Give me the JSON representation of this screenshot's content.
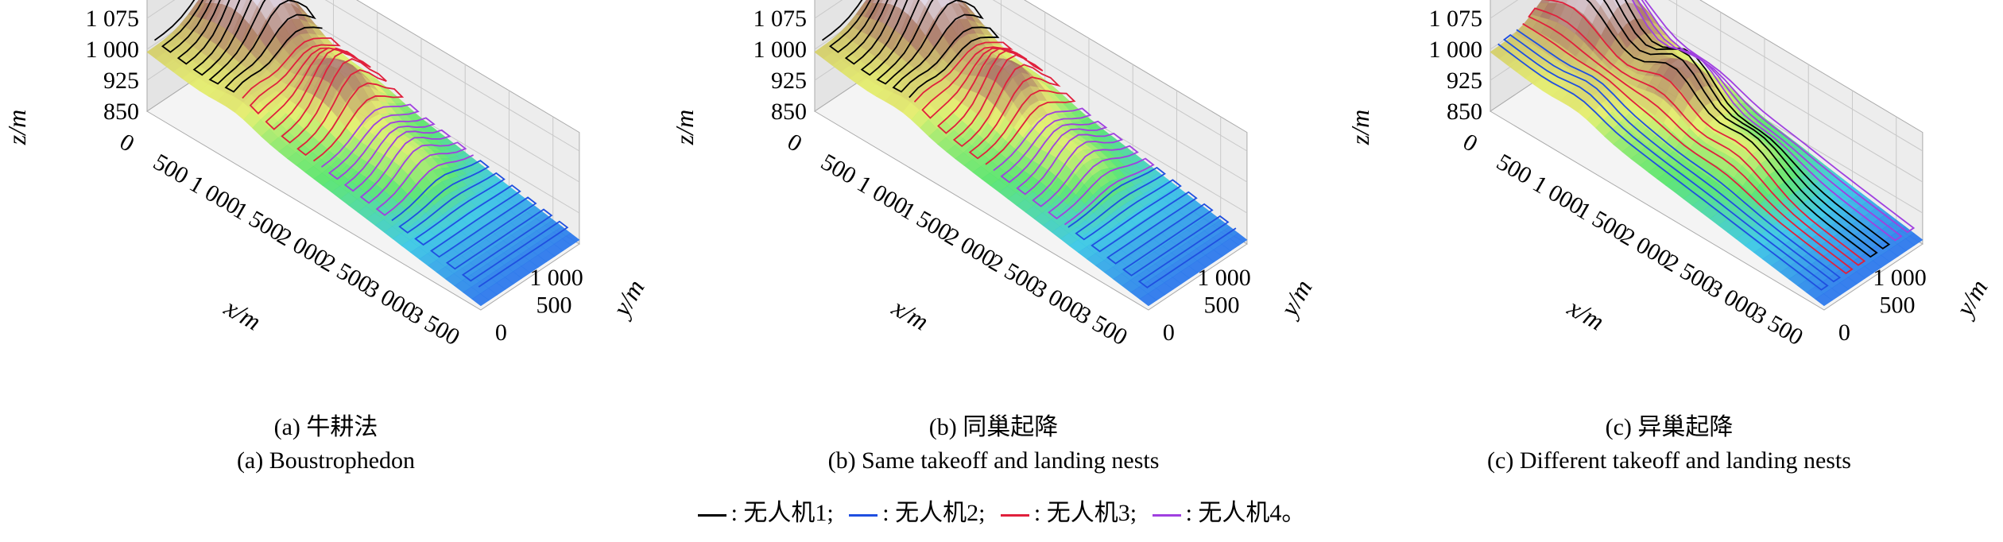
{
  "chart_data": [
    {
      "type": "surface3d",
      "caption_cn": "(a) 牛耕法",
      "caption_en": "(a) Boustrophedon",
      "xlabel": "x/m",
      "ylabel": "y/m",
      "zlabel": "z/m",
      "xticks": [
        "0",
        "500",
        "1 000",
        "1 500",
        "2 000",
        "2 500",
        "3 000",
        "3 500"
      ],
      "yticks": [
        "0",
        "500",
        "1 000"
      ],
      "zticks": [
        "850",
        "925",
        "1 000",
        "1 075"
      ],
      "xlim": [
        0,
        3800
      ],
      "ylim": [
        0,
        1200
      ],
      "zlim": [
        850,
        1120
      ],
      "regions": [
        {
          "uav": 1,
          "x": [
            0,
            1000
          ]
        },
        {
          "uav": 3,
          "x": [
            1000,
            1900
          ]
        },
        {
          "uav": 4,
          "x": [
            1900,
            2700
          ]
        },
        {
          "uav": 2,
          "x": [
            2700,
            3800
          ]
        }
      ]
    },
    {
      "type": "surface3d",
      "caption_cn": "(b) 同巢起降",
      "caption_en": "(b) Same takeoff and landing nests",
      "xlabel": "x/m",
      "ylabel": "y/m",
      "zlabel": "z/m",
      "xticks": [
        "0",
        "500",
        "1 000",
        "1 500",
        "2 000",
        "2 500",
        "3 000",
        "3 500"
      ],
      "yticks": [
        "0",
        "500",
        "1 000"
      ],
      "zticks": [
        "850",
        "925",
        "1 000",
        "1 075"
      ],
      "xlim": [
        0,
        3800
      ],
      "ylim": [
        0,
        1200
      ],
      "zlim": [
        850,
        1120
      ],
      "regions": [
        {
          "uav": 1,
          "x": [
            0,
            1050
          ]
        },
        {
          "uav": 3,
          "x": [
            1050,
            1950
          ]
        },
        {
          "uav": 4,
          "x": [
            1950,
            2800
          ]
        },
        {
          "uav": 2,
          "x": [
            2800,
            3800
          ]
        }
      ]
    },
    {
      "type": "surface3d",
      "caption_cn": "(c) 异巢起降",
      "caption_en": "(c) Different takeoff and landing nests",
      "xlabel": "x/m",
      "ylabel": "y/m",
      "zlabel": "z/m",
      "xticks": [
        "0",
        "500",
        "1 000",
        "1 500",
        "2 000",
        "2 500",
        "3 000",
        "3 500"
      ],
      "yticks": [
        "0",
        "500",
        "1 000"
      ],
      "zticks": [
        "850",
        "925",
        "1 000",
        "1 075"
      ],
      "xlim": [
        0,
        3800
      ],
      "ylim": [
        0,
        1200
      ],
      "zlim": [
        850,
        1120
      ],
      "regions": [
        {
          "uav": 2,
          "y": [
            0,
            300
          ]
        },
        {
          "uav": 3,
          "y": [
            300,
            600
          ]
        },
        {
          "uav": 1,
          "y": [
            600,
            900
          ]
        },
        {
          "uav": 4,
          "y": [
            900,
            1200
          ]
        }
      ]
    }
  ],
  "legend": [
    {
      "mark": "—",
      "label": ": 无人机1;",
      "color": "#000000"
    },
    {
      "mark": "—",
      "label": ": 无人机2;",
      "color": "#1f4fe0"
    },
    {
      "mark": "—",
      "label": ": 无人机3;",
      "color": "#e0203c"
    },
    {
      "mark": "—",
      "label": ": 无人机4。",
      "color": "#a040e0"
    }
  ]
}
